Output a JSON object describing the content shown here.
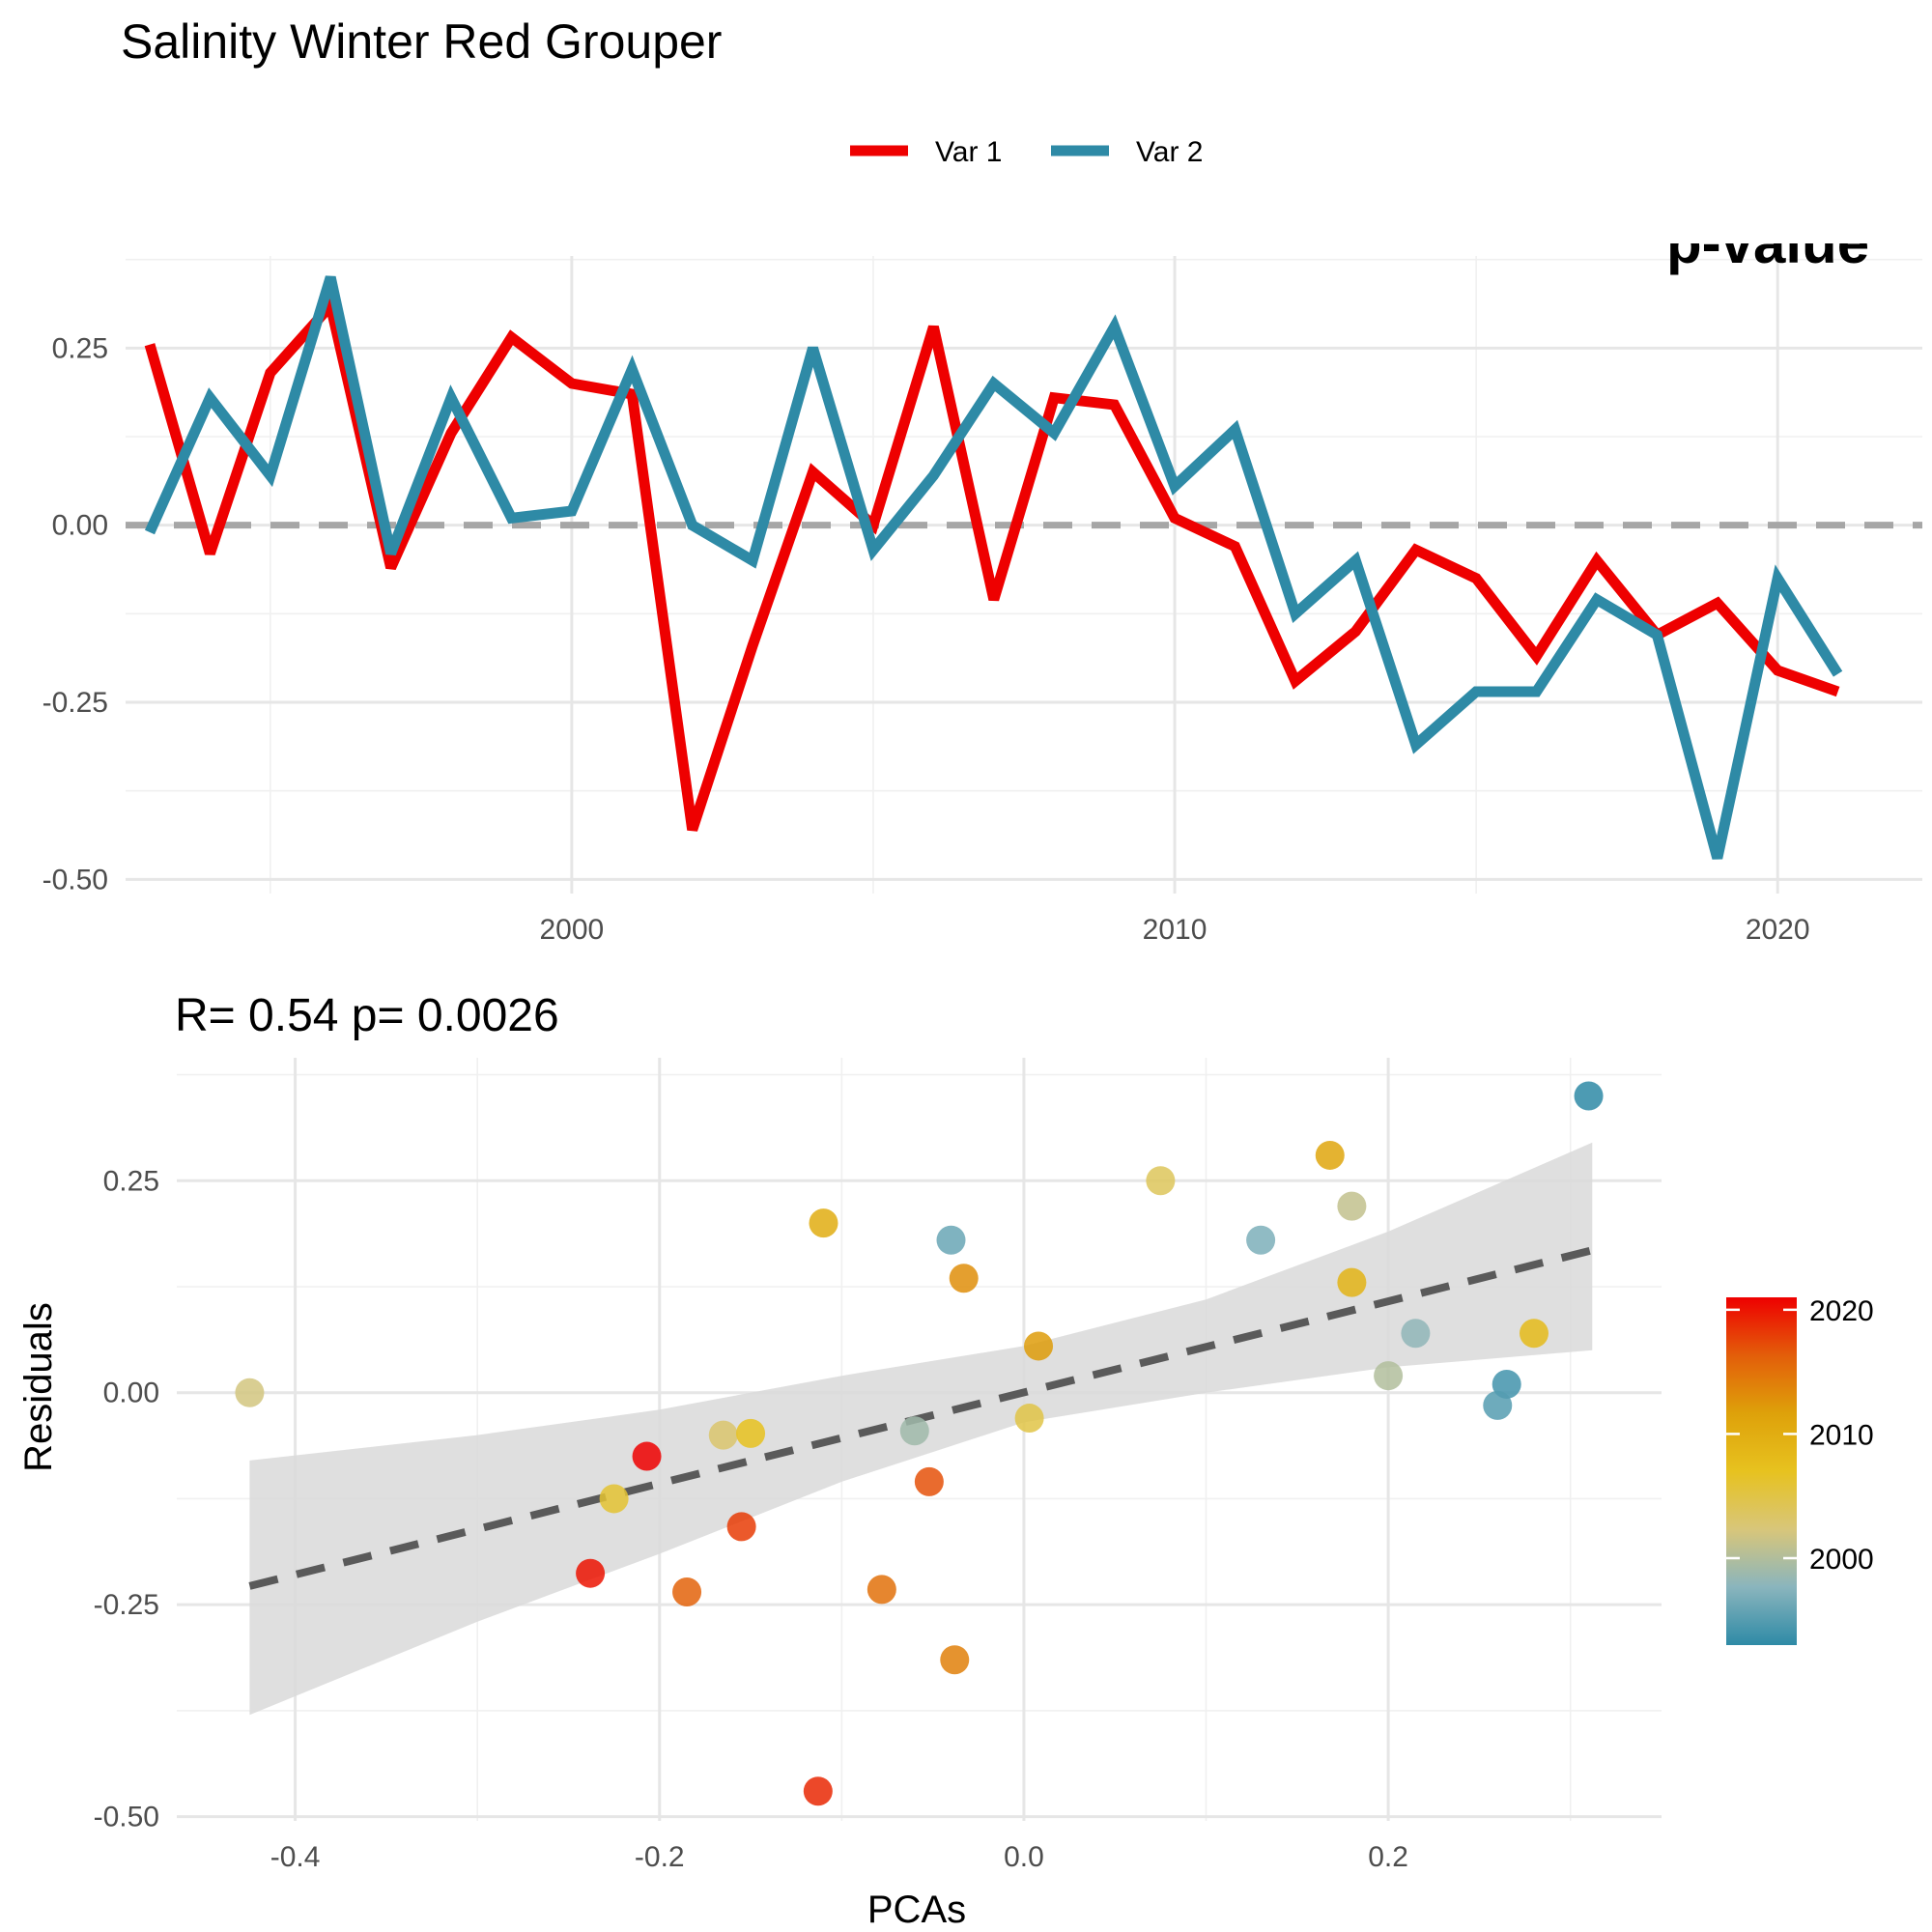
{
  "chart_data": [
    {
      "type": "line",
      "title": "Salinity Winter Red Grouper",
      "xlabel": "",
      "ylabel": "",
      "xlim": [
        1992.6,
        2022.4
      ],
      "ylim": [
        -0.52,
        0.38
      ],
      "x_ticks": [
        2000,
        2010,
        2020
      ],
      "y_ticks": [
        0.25,
        0.0,
        -0.25,
        -0.5
      ],
      "y_tick_labels": [
        "0.25",
        "0.00",
        "-0.25",
        "-0.50"
      ],
      "x_tick_labels": [
        "2000",
        "2010",
        "2020"
      ],
      "x_minor_ticks": [
        1995,
        2005,
        2015
      ],
      "y_minor_ticks": [
        0.375,
        0.125,
        -0.125,
        -0.375
      ],
      "reference_line": {
        "y": 0,
        "style": "dashed",
        "color": "#a6a6a6"
      },
      "grid": true,
      "legend": {
        "position": "top-center"
      },
      "clipped_text": "p-value",
      "x": [
        1993,
        1994,
        1995,
        1996,
        1997,
        1998,
        1999,
        2000,
        2001,
        2002,
        2003,
        2004,
        2005,
        2006,
        2007,
        2008,
        2009,
        2010,
        2011,
        2012,
        2013,
        2014,
        2015,
        2016,
        2017,
        2018,
        2019,
        2020,
        2021
      ],
      "series": [
        {
          "name": "Var 1",
          "color": "#ee0000",
          "values": [
            0.255,
            -0.04,
            0.215,
            0.31,
            -0.06,
            0.13,
            0.265,
            0.2,
            0.185,
            -0.43,
            -0.17,
            0.075,
            0.0,
            0.28,
            -0.105,
            0.18,
            0.17,
            0.01,
            -0.03,
            -0.22,
            -0.15,
            -0.035,
            -0.075,
            -0.185,
            -0.05,
            -0.155,
            -0.11,
            -0.205,
            -0.235
          ]
        },
        {
          "name": "Var 2",
          "color": "#2e8aa6",
          "values": [
            -0.01,
            0.18,
            0.07,
            0.35,
            -0.04,
            0.18,
            0.01,
            0.02,
            0.22,
            0.0,
            -0.05,
            0.25,
            -0.035,
            0.07,
            0.2,
            0.13,
            0.28,
            0.055,
            0.135,
            -0.125,
            -0.05,
            -0.31,
            -0.235,
            -0.235,
            -0.105,
            -0.155,
            -0.47,
            -0.075,
            -0.21
          ]
        }
      ]
    },
    {
      "type": "scatter",
      "subtitle": "R= 0.54  p= 0.0026",
      "xlabel": "PCAs",
      "ylabel": "Residuals",
      "xlim": [
        -0.465,
        0.35
      ],
      "ylim": [
        -0.505,
        0.395
      ],
      "x_ticks": [
        -0.4,
        -0.2,
        0.0,
        0.2
      ],
      "x_tick_labels": [
        "-0.4",
        "-0.2",
        "0.0",
        "0.2"
      ],
      "y_ticks": [
        0.25,
        0.0,
        -0.25,
        -0.5
      ],
      "y_tick_labels": [
        "0.25",
        "0.00",
        "-0.25",
        "-0.50"
      ],
      "x_minor_ticks": [
        -0.3,
        -0.1,
        0.1,
        0.3
      ],
      "y_minor_ticks": [
        0.375,
        0.125,
        -0.125,
        -0.375
      ],
      "grid": true,
      "fit_line": {
        "style": "dashed",
        "color": "#5a5a5a",
        "x": [
          -0.425,
          0.312
        ],
        "y": [
          -0.228,
          0.168
        ]
      },
      "confidence_band": {
        "color": "#d9d9d9",
        "x": [
          -0.425,
          -0.3,
          -0.2,
          -0.1,
          0.0,
          0.1,
          0.2,
          0.312
        ],
        "lower": [
          -0.38,
          -0.27,
          -0.19,
          -0.105,
          -0.035,
          0.0,
          0.03,
          0.05
        ],
        "upper": [
          -0.08,
          -0.05,
          -0.02,
          0.02,
          0.055,
          0.11,
          0.19,
          0.295
        ]
      },
      "colorbar": {
        "title": "",
        "range": [
          1993,
          2021
        ],
        "ticks": [
          2000,
          2010,
          2020
        ],
        "tick_labels": [
          "2000",
          "2010",
          "2020"
        ],
        "colors": [
          "#2e8aa6",
          "#8ab5bd",
          "#d8c67a",
          "#e7c21f",
          "#dea10a",
          "#e35e0a",
          "#ee0000"
        ],
        "position": "right"
      },
      "points": [
        {
          "x": 0.31,
          "y": 0.35,
          "year": 1993
        },
        {
          "x": 0.265,
          "y": 0.01,
          "year": 1994
        },
        {
          "x": 0.26,
          "y": -0.015,
          "year": 1995
        },
        {
          "x": -0.04,
          "y": 0.18,
          "year": 1996
        },
        {
          "x": 0.13,
          "y": 0.18,
          "year": 1997
        },
        {
          "x": 0.215,
          "y": 0.07,
          "year": 1998
        },
        {
          "x": -0.06,
          "y": -0.045,
          "year": 1999
        },
        {
          "x": 0.2,
          "y": 0.02,
          "year": 2000
        },
        {
          "x": 0.18,
          "y": 0.22,
          "year": 2001
        },
        {
          "x": -0.425,
          "y": 0.0,
          "year": 2002
        },
        {
          "x": -0.165,
          "y": -0.05,
          "year": 2003
        },
        {
          "x": 0.075,
          "y": 0.25,
          "year": 2004
        },
        {
          "x": 0.003,
          "y": -0.03,
          "year": 2005
        },
        {
          "x": -0.225,
          "y": -0.125,
          "year": 2006
        },
        {
          "x": -0.15,
          "y": -0.048,
          "year": 2007
        },
        {
          "x": 0.28,
          "y": 0.07,
          "year": 2008
        },
        {
          "x": 0.18,
          "y": 0.13,
          "year": 2009
        },
        {
          "x": -0.11,
          "y": 0.2,
          "year": 2010
        },
        {
          "x": 0.168,
          "y": 0.28,
          "year": 2011
        },
        {
          "x": 0.008,
          "y": 0.055,
          "year": 2012
        },
        {
          "x": -0.033,
          "y": 0.135,
          "year": 2013
        },
        {
          "x": -0.038,
          "y": -0.315,
          "year": 2014
        },
        {
          "x": -0.078,
          "y": -0.232,
          "year": 2015
        },
        {
          "x": -0.185,
          "y": -0.235,
          "year": 2016
        },
        {
          "x": -0.052,
          "y": -0.105,
          "year": 2017
        },
        {
          "x": -0.155,
          "y": -0.158,
          "year": 2018
        },
        {
          "x": -0.113,
          "y": -0.47,
          "year": 2019
        },
        {
          "x": -0.238,
          "y": -0.213,
          "year": 2020
        },
        {
          "x": -0.207,
          "y": -0.075,
          "year": 2021
        }
      ]
    }
  ]
}
